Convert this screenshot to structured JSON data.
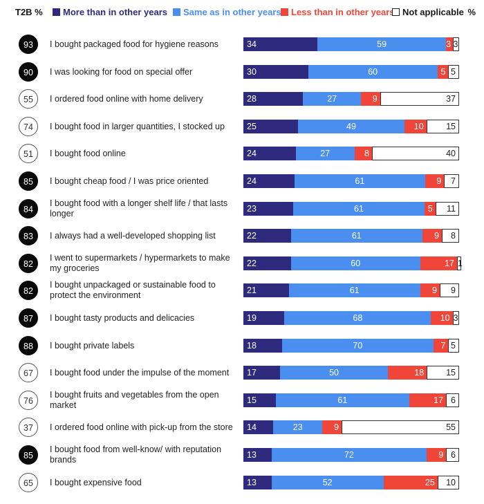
{
  "legend": {
    "t2b_label": "T2B %",
    "percent_label": "%",
    "items": [
      {
        "label": "More than in other years",
        "color": "#2e2a7d"
      },
      {
        "label": "Same as in other years",
        "color": "#4a8ef0"
      },
      {
        "label": "Less than in other years",
        "color": "#f0463a"
      },
      {
        "label": "Not applicable",
        "color": "#ffffff"
      }
    ]
  },
  "chart_data": {
    "type": "bar",
    "orientation": "horizontal",
    "stacked": true,
    "series_names": [
      "More than in other years",
      "Same as in other years",
      "Less than in other years",
      "Not applicable"
    ],
    "rows": [
      {
        "t2b": 93,
        "label": "I bought packaged food for hygiene reasons",
        "values": [
          34,
          59,
          3,
          3
        ]
      },
      {
        "t2b": 90,
        "label": "I was looking for food on special offer",
        "values": [
          30,
          60,
          5,
          5
        ]
      },
      {
        "t2b": 55,
        "label": "I ordered food online with home delivery",
        "values": [
          28,
          27,
          9,
          37
        ]
      },
      {
        "t2b": 74,
        "label": "I bought food in larger quantities, I stocked up",
        "values": [
          25,
          49,
          10,
          15
        ]
      },
      {
        "t2b": 51,
        "label": "I bought food online",
        "values": [
          24,
          27,
          8,
          40
        ]
      },
      {
        "t2b": 85,
        "label": "I bought cheap food / I was price oriented",
        "values": [
          24,
          61,
          9,
          7
        ]
      },
      {
        "t2b": 84,
        "label": "I bought food with a longer shelf life / that lasts longer",
        "values": [
          23,
          61,
          5,
          11
        ]
      },
      {
        "t2b": 83,
        "label": "I always had a well-developed shopping list",
        "values": [
          22,
          61,
          9,
          8
        ]
      },
      {
        "t2b": 82,
        "label": "I went to supermarkets / hypermarkets to make my groceries",
        "values": [
          22,
          60,
          17,
          1
        ]
      },
      {
        "t2b": 82,
        "label": "I bought unpackaged or sustainable food to protect the environment",
        "values": [
          21,
          61,
          9,
          9
        ]
      },
      {
        "t2b": 87,
        "label": "I bought tasty products and delicacies",
        "values": [
          19,
          68,
          10,
          3
        ]
      },
      {
        "t2b": 88,
        "label": "I bought private labels",
        "values": [
          18,
          70,
          7,
          5
        ]
      },
      {
        "t2b": 67,
        "label": "I bought food under the impulse of the moment",
        "values": [
          17,
          50,
          18,
          15
        ]
      },
      {
        "t2b": 76,
        "label": "I bought fruits and vegetables from the open market",
        "values": [
          15,
          61,
          17,
          6
        ]
      },
      {
        "t2b": 37,
        "label": "I ordered food online with pick-up from the store",
        "values": [
          14,
          23,
          9,
          55
        ]
      },
      {
        "t2b": 85,
        "label": "I bought food from well-know/ with reputation brands",
        "values": [
          13,
          72,
          9,
          6
        ]
      },
      {
        "t2b": 65,
        "label": "I bought expensive food",
        "values": [
          13,
          52,
          25,
          10
        ]
      }
    ]
  }
}
